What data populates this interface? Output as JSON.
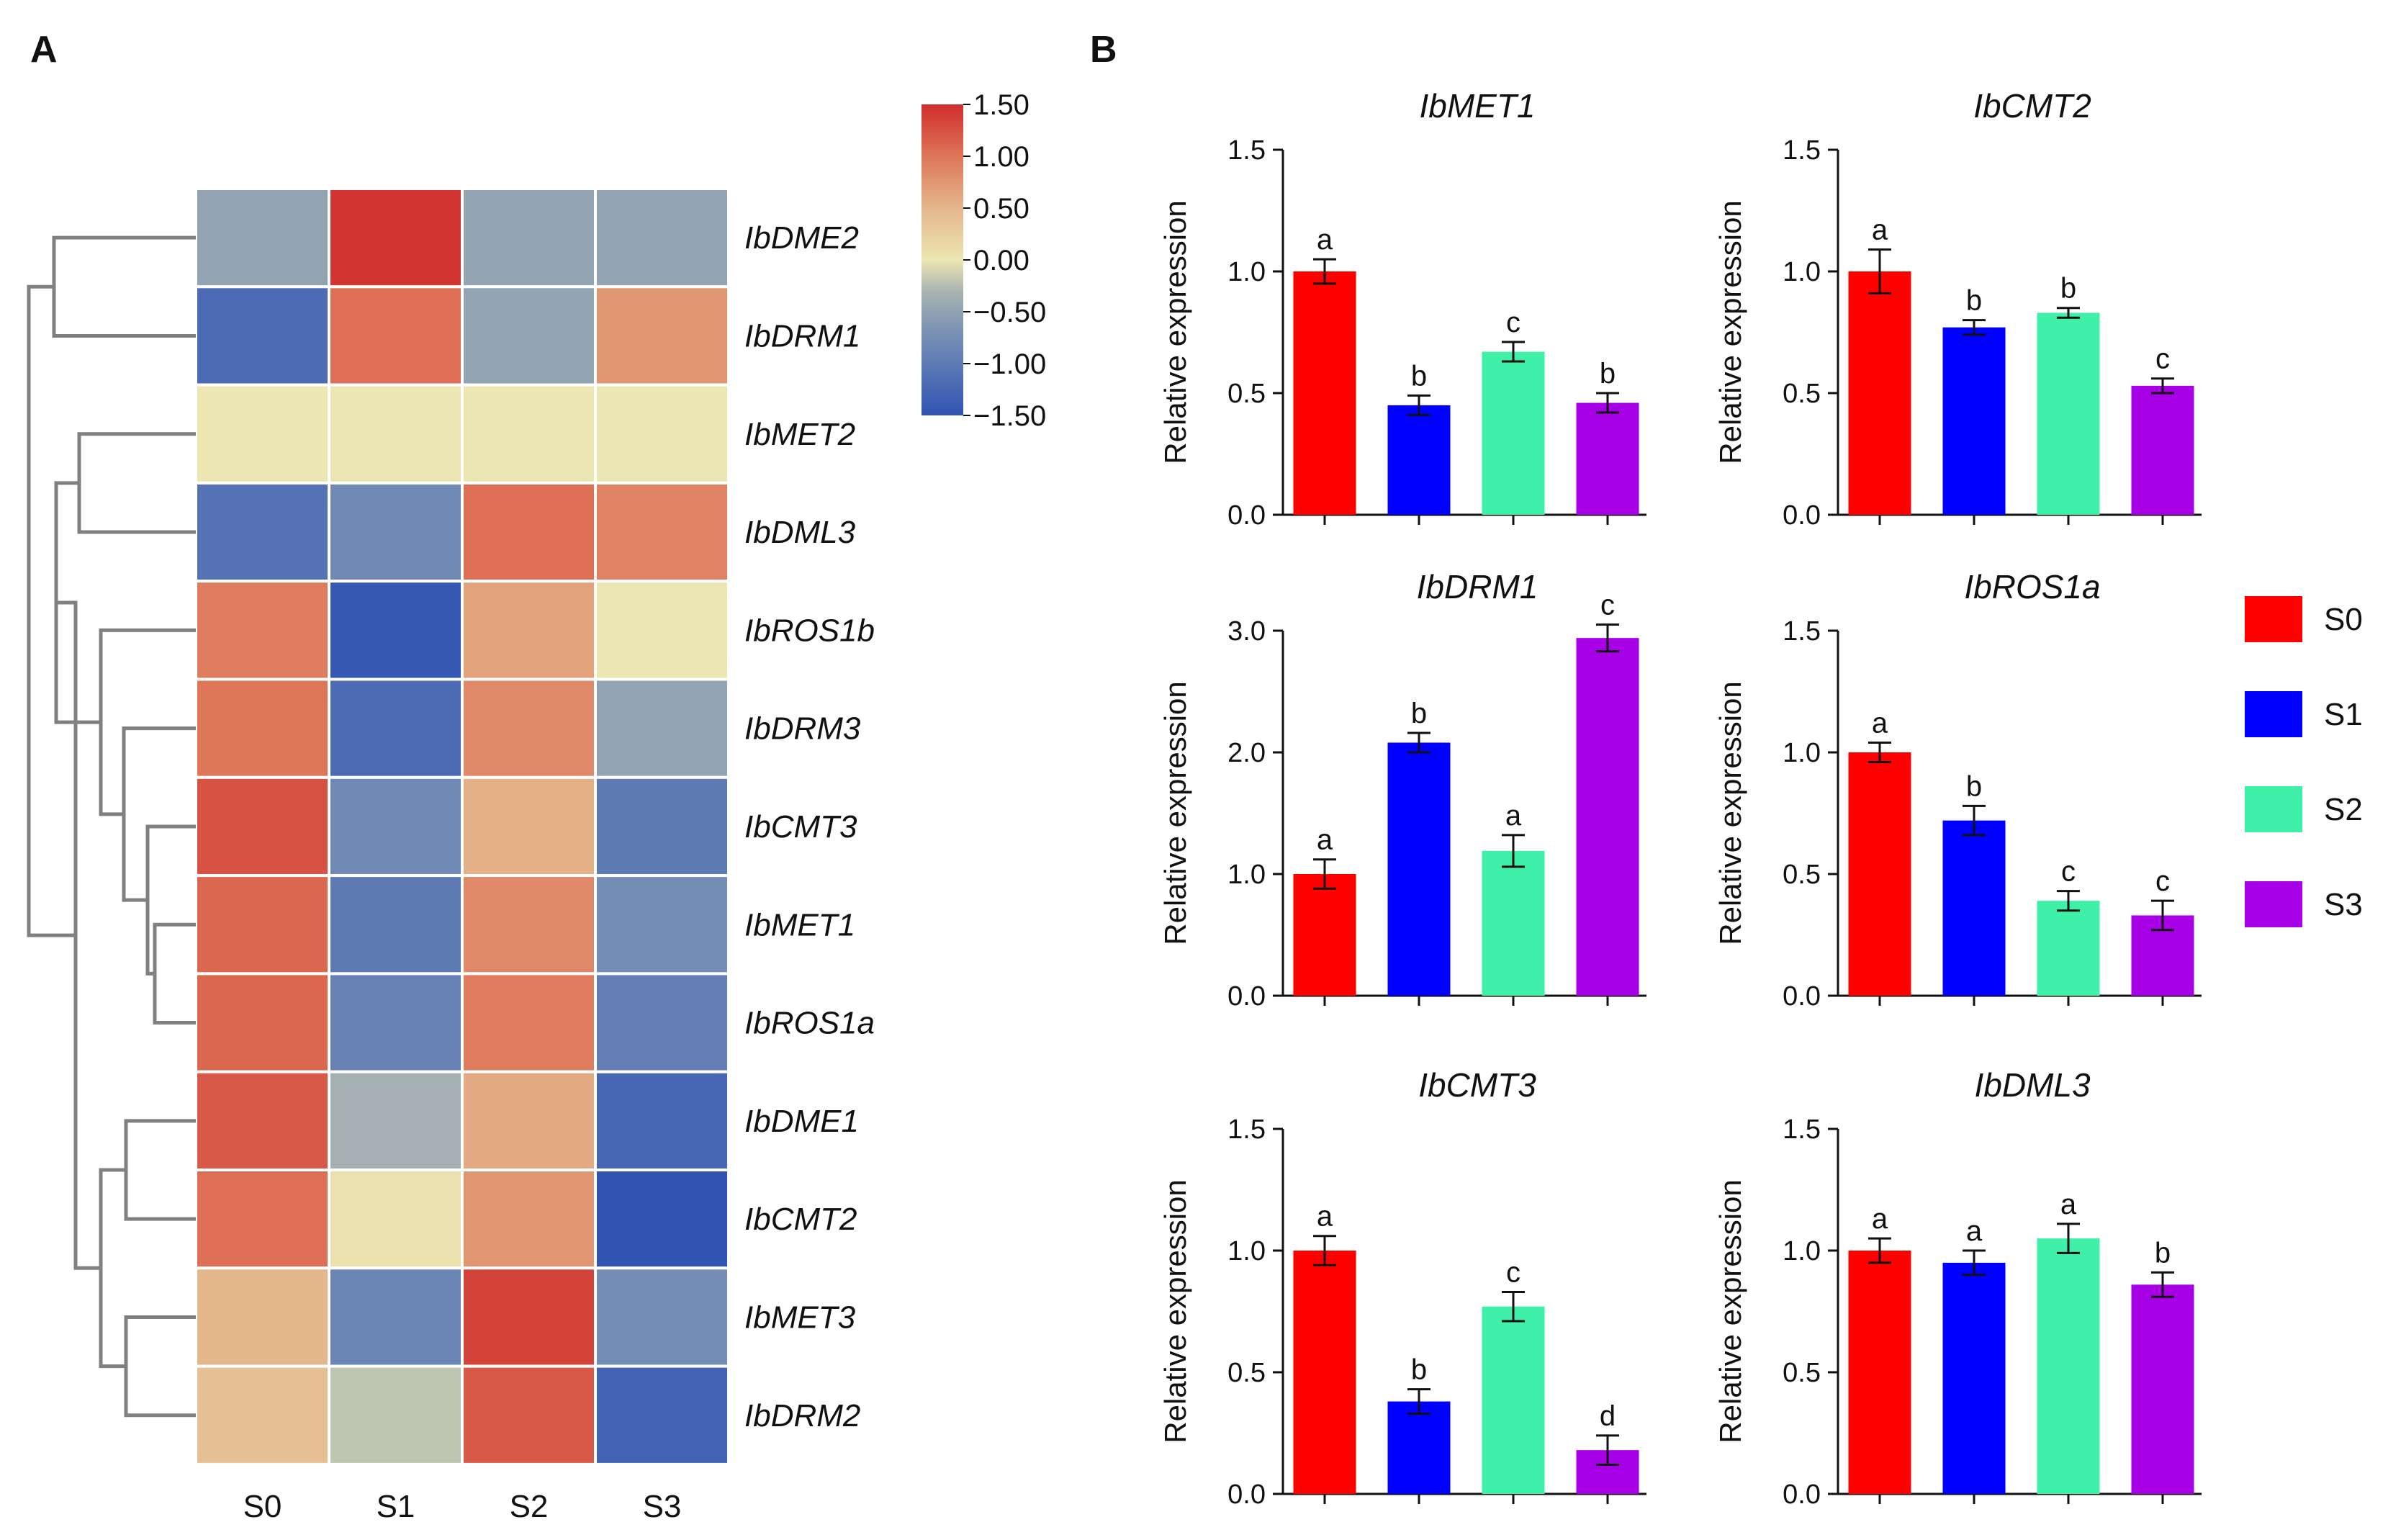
{
  "panel_labels": {
    "a": "A",
    "b": "B"
  },
  "colors": {
    "S0": "#ff0000",
    "S1": "#0000ff",
    "S2": "#3ff0a8",
    "S3": "#a800e6",
    "dendrogram": "#808080",
    "axis": "#111111"
  },
  "legend": {
    "items": [
      {
        "label": "S0",
        "color": "#ff0000"
      },
      {
        "label": "S1",
        "color": "#0000ff"
      },
      {
        "label": "S2",
        "color": "#3ff0a8"
      },
      {
        "label": "S3",
        "color": "#a800e6"
      }
    ]
  },
  "chart_data": [
    {
      "type": "heatmap",
      "title": "",
      "columns": [
        "S0",
        "S1",
        "S2",
        "S3"
      ],
      "rows": [
        "IbDME2",
        "IbDRM1",
        "IbMET2",
        "IbDML3",
        "IbROS1b",
        "IbDRM3",
        "IbCMT3",
        "IbMET1",
        "IbROS1a",
        "IbDME1",
        "IbCMT2",
        "IbMET3",
        "IbDRM2"
      ],
      "values": [
        [
          -0.5,
          1.45,
          -0.5,
          -0.5
        ],
        [
          -1.2,
          1.05,
          -0.5,
          0.75
        ],
        [
          0.0,
          0.0,
          0.0,
          0.0
        ],
        [
          -1.1,
          -0.8,
          1.05,
          0.9
        ],
        [
          0.95,
          -1.45,
          0.65,
          0.0
        ],
        [
          1.0,
          -1.2,
          0.85,
          -0.5
        ],
        [
          1.25,
          -0.8,
          0.55,
          -1.0
        ],
        [
          1.1,
          -1.0,
          0.85,
          -0.75
        ],
        [
          1.1,
          -0.9,
          0.95,
          -0.95
        ],
        [
          1.2,
          -0.35,
          0.6,
          -1.25
        ],
        [
          1.05,
          0.05,
          0.75,
          -1.5
        ],
        [
          0.5,
          -0.85,
          1.35,
          -0.75
        ],
        [
          0.4,
          -0.2,
          1.2,
          -1.3
        ]
      ],
      "colorbar": {
        "range": [
          -1.5,
          1.5
        ],
        "ticks": [
          "1.50",
          "1.00",
          "0.50",
          "0.00",
          "−0.50",
          "−1.00",
          "−1.50"
        ]
      },
      "row_dendrogram": true
    },
    {
      "type": "bar",
      "title": "IbMET1",
      "categories": [
        "S0",
        "S1",
        "S2",
        "S3"
      ],
      "values": [
        1.0,
        0.45,
        0.67,
        0.46
      ],
      "errors": [
        0.05,
        0.04,
        0.04,
        0.04
      ],
      "letters": [
        "a",
        "b",
        "c",
        "b"
      ],
      "ylabel": "Relative expression",
      "ylim": [
        0,
        1.5
      ],
      "yticks": [
        "0.0",
        "0.5",
        "1.0",
        "1.5"
      ]
    },
    {
      "type": "bar",
      "title": "IbCMT2",
      "categories": [
        "S0",
        "S1",
        "S2",
        "S3"
      ],
      "values": [
        1.0,
        0.77,
        0.83,
        0.53
      ],
      "errors": [
        0.09,
        0.03,
        0.02,
        0.03
      ],
      "letters": [
        "a",
        "b",
        "b",
        "c"
      ],
      "ylabel": "Relative expression",
      "ylim": [
        0,
        1.5
      ],
      "yticks": [
        "0.0",
        "0.5",
        "1.0",
        "1.5"
      ]
    },
    {
      "type": "bar",
      "title": "IbDRM1",
      "categories": [
        "S0",
        "S1",
        "S2",
        "S3"
      ],
      "values": [
        1.0,
        2.08,
        1.19,
        2.94
      ],
      "errors": [
        0.12,
        0.08,
        0.13,
        0.11
      ],
      "letters": [
        "a",
        "b",
        "a",
        "c"
      ],
      "ylabel": "Relative expression",
      "ylim": [
        0,
        3.0
      ],
      "yticks": [
        "0.0",
        "1.0",
        "2.0",
        "3.0"
      ]
    },
    {
      "type": "bar",
      "title": "IbROS1a",
      "categories": [
        "S0",
        "S1",
        "S2",
        "S3"
      ],
      "values": [
        1.0,
        0.72,
        0.39,
        0.33
      ],
      "errors": [
        0.04,
        0.06,
        0.04,
        0.06
      ],
      "letters": [
        "a",
        "b",
        "c",
        "c"
      ],
      "ylabel": "Relative expression",
      "ylim": [
        0,
        1.5
      ],
      "yticks": [
        "0.0",
        "0.5",
        "1.0",
        "1.5"
      ]
    },
    {
      "type": "bar",
      "title": "IbCMT3",
      "categories": [
        "S0",
        "S1",
        "S2",
        "S3"
      ],
      "values": [
        1.0,
        0.38,
        0.77,
        0.18
      ],
      "errors": [
        0.06,
        0.05,
        0.06,
        0.06
      ],
      "letters": [
        "a",
        "b",
        "c",
        "d"
      ],
      "ylabel": "Relative expression",
      "ylim": [
        0,
        1.5
      ],
      "yticks": [
        "0.0",
        "0.5",
        "1.0",
        "1.5"
      ]
    },
    {
      "type": "bar",
      "title": "IbDML3",
      "categories": [
        "S0",
        "S1",
        "S2",
        "S3"
      ],
      "values": [
        1.0,
        0.95,
        1.05,
        0.86
      ],
      "errors": [
        0.05,
        0.05,
        0.06,
        0.05
      ],
      "letters": [
        "a",
        "a",
        "a",
        "b"
      ],
      "ylabel": "Relative expression",
      "ylim": [
        0,
        1.5
      ],
      "yticks": [
        "0.0",
        "0.5",
        "1.0",
        "1.5"
      ]
    }
  ]
}
